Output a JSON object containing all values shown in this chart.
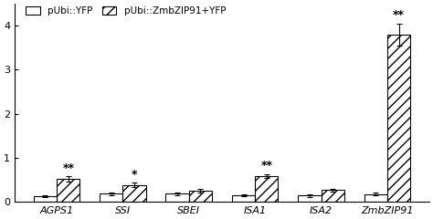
{
  "categories": [
    "AGPS1",
    "SSI",
    "SBEI",
    "ISA1",
    "ISA2",
    "ZmbZIP91"
  ],
  "yfp_values": [
    0.12,
    0.18,
    0.18,
    0.15,
    0.14,
    0.17
  ],
  "zip_values": [
    0.52,
    0.38,
    0.25,
    0.58,
    0.26,
    3.8
  ],
  "yfp_errors": [
    0.02,
    0.03,
    0.03,
    0.02,
    0.03,
    0.03
  ],
  "zip_errors": [
    0.06,
    0.05,
    0.04,
    0.05,
    0.04,
    0.25
  ],
  "significance": [
    "**",
    "*",
    "",
    "**",
    "",
    "**"
  ],
  "bar_width": 0.35,
  "legend_yfp": "pUbi::YFP",
  "legend_zip": "pUbi::ZmbZIP91+YFP",
  "ylabel": "",
  "ylim": [
    0,
    4.5
  ],
  "yticks": [
    0,
    1,
    2,
    3,
    4
  ],
  "background_color": "#ffffff",
  "bar_color_yfp": "#ffffff",
  "bar_color_zip": "#ffffff",
  "hatch_zip": "///",
  "hatch_yfp": ""
}
